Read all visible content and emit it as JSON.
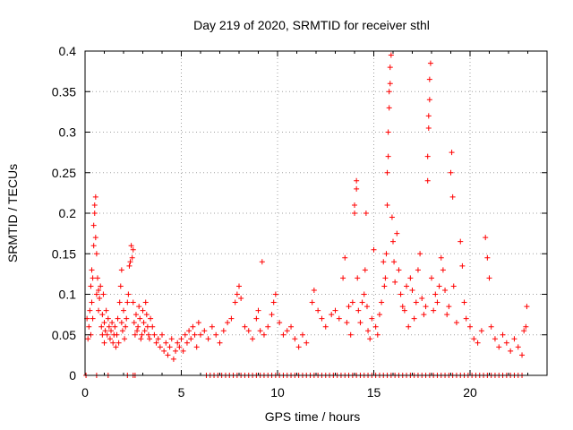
{
  "chart_data": {
    "type": "scatter",
    "title": "Day 219 of 2020, SRMTID for receiver sthl",
    "xlabel": "GPS time / hours",
    "ylabel": "SRMTID / TECUs",
    "xlim": [
      0,
      24
    ],
    "ylim": [
      0,
      0.4
    ],
    "xticks": [
      0,
      5,
      10,
      15,
      20
    ],
    "yticks": [
      0,
      0.05,
      0.1,
      0.15,
      0.2,
      0.25,
      0.3,
      0.35,
      0.4
    ],
    "xtick_labels": [
      "0",
      "5",
      "10",
      "15",
      "20"
    ],
    "ytick_labels": [
      "0",
      "0.05",
      "0.1",
      "0.15",
      "0.2",
      "0.25",
      "0.3",
      "0.35",
      "0.4"
    ],
    "grid": true,
    "marker": "+",
    "color": "#ff0000",
    "series": [
      {
        "name": "sthl",
        "points": [
          [
            0.1,
            0.07
          ],
          [
            0.15,
            0.045
          ],
          [
            0.2,
            0.06
          ],
          [
            0.25,
            0.08
          ],
          [
            0.3,
            0.05
          ],
          [
            0.3,
            0.11
          ],
          [
            0.35,
            0.13
          ],
          [
            0.35,
            0.09
          ],
          [
            0.4,
            0.12
          ],
          [
            0.4,
            0.07
          ],
          [
            0.45,
            0.16
          ],
          [
            0.45,
            0.185
          ],
          [
            0.5,
            0.2
          ],
          [
            0.5,
            0.21
          ],
          [
            0.55,
            0.22
          ],
          [
            0.55,
            0.17
          ],
          [
            0.6,
            0.15
          ],
          [
            0.6,
            0.1
          ],
          [
            0.65,
            0.12
          ],
          [
            0.7,
            0.08
          ],
          [
            0.7,
            0.105
          ],
          [
            0.75,
            0.095
          ],
          [
            0.8,
            0.11
          ],
          [
            0.85,
            0.06
          ],
          [
            0.9,
            0.05
          ],
          [
            0.9,
            0.075
          ],
          [
            0.95,
            0.1
          ],
          [
            1.0,
            0.065
          ],
          [
            1.0,
            0.04
          ],
          [
            1.05,
            0.055
          ],
          [
            1.1,
            0.08
          ],
          [
            1.15,
            0.05
          ],
          [
            1.2,
            0.07
          ],
          [
            1.25,
            0.06
          ],
          [
            1.3,
            0.045
          ],
          [
            1.35,
            0.055
          ],
          [
            1.4,
            0.065
          ],
          [
            1.45,
            0.04
          ],
          [
            1.5,
            0.05
          ],
          [
            1.55,
            0.06
          ],
          [
            1.6,
            0.035
          ],
          [
            1.65,
            0.05
          ],
          [
            1.7,
            0.07
          ],
          [
            1.75,
            0.04
          ],
          [
            1.8,
            0.09
          ],
          [
            1.85,
            0.11
          ],
          [
            1.9,
            0.13
          ],
          [
            1.9,
            0.065
          ],
          [
            1.95,
            0.055
          ],
          [
            2.0,
            0.08
          ],
          [
            2.05,
            0.045
          ],
          [
            2.1,
            0.06
          ],
          [
            2.15,
            0.07
          ],
          [
            2.2,
            0.09
          ],
          [
            2.25,
            0.1
          ],
          [
            2.3,
            0.135
          ],
          [
            2.35,
            0.14
          ],
          [
            2.4,
            0.16
          ],
          [
            2.45,
            0.145
          ],
          [
            2.5,
            0.155
          ],
          [
            2.5,
            0.09
          ],
          [
            2.55,
            0.065
          ],
          [
            2.6,
            0.05
          ],
          [
            2.65,
            0.075
          ],
          [
            2.7,
            0.055
          ],
          [
            2.75,
            0.06
          ],
          [
            2.8,
            0.085
          ],
          [
            2.85,
            0.07
          ],
          [
            2.9,
            0.045
          ],
          [
            2.95,
            0.05
          ],
          [
            3.0,
            0.08
          ],
          [
            3.05,
            0.065
          ],
          [
            3.1,
            0.055
          ],
          [
            3.15,
            0.09
          ],
          [
            3.2,
            0.075
          ],
          [
            3.25,
            0.06
          ],
          [
            3.3,
            0.05
          ],
          [
            3.35,
            0.045
          ],
          [
            3.4,
            0.07
          ],
          [
            3.5,
            0.06
          ],
          [
            3.6,
            0.05
          ],
          [
            3.7,
            0.04
          ],
          [
            3.8,
            0.045
          ],
          [
            3.9,
            0.035
          ],
          [
            4.0,
            0.05
          ],
          [
            4.1,
            0.03
          ],
          [
            4.2,
            0.04
          ],
          [
            4.3,
            0.025
          ],
          [
            4.4,
            0.035
          ],
          [
            4.5,
            0.045
          ],
          [
            4.6,
            0.02
          ],
          [
            4.7,
            0.03
          ],
          [
            4.8,
            0.04
          ],
          [
            4.9,
            0.035
          ],
          [
            5.0,
            0.045
          ],
          [
            5.1,
            0.03
          ],
          [
            5.2,
            0.05
          ],
          [
            5.3,
            0.04
          ],
          [
            5.4,
            0.055
          ],
          [
            5.5,
            0.045
          ],
          [
            5.6,
            0.06
          ],
          [
            5.7,
            0.05
          ],
          [
            5.8,
            0.035
          ],
          [
            5.9,
            0.065
          ],
          [
            6.0,
            0.05
          ],
          [
            6.2,
            0.055
          ],
          [
            6.4,
            0.045
          ],
          [
            6.6,
            0.06
          ],
          [
            6.8,
            0.05
          ],
          [
            7.0,
            0.04
          ],
          [
            7.2,
            0.055
          ],
          [
            7.4,
            0.065
          ],
          [
            7.6,
            0.07
          ],
          [
            7.8,
            0.09
          ],
          [
            7.9,
            0.1
          ],
          [
            8.0,
            0.11
          ],
          [
            8.1,
            0.095
          ],
          [
            8.3,
            0.06
          ],
          [
            8.5,
            0.055
          ],
          [
            8.7,
            0.045
          ],
          [
            8.9,
            0.07
          ],
          [
            9.0,
            0.08
          ],
          [
            9.1,
            0.055
          ],
          [
            9.2,
            0.14
          ],
          [
            9.3,
            0.05
          ],
          [
            9.5,
            0.06
          ],
          [
            9.7,
            0.075
          ],
          [
            9.8,
            0.09
          ],
          [
            9.9,
            0.1
          ],
          [
            10.1,
            0.065
          ],
          [
            10.3,
            0.05
          ],
          [
            10.5,
            0.055
          ],
          [
            10.7,
            0.06
          ],
          [
            10.9,
            0.045
          ],
          [
            11.1,
            0.035
          ],
          [
            11.3,
            0.05
          ],
          [
            11.5,
            0.04
          ],
          [
            11.8,
            0.09
          ],
          [
            11.9,
            0.105
          ],
          [
            12.1,
            0.08
          ],
          [
            12.3,
            0.07
          ],
          [
            12.5,
            0.06
          ],
          [
            12.8,
            0.075
          ],
          [
            13.0,
            0.08
          ],
          [
            13.2,
            0.07
          ],
          [
            13.4,
            0.12
          ],
          [
            13.5,
            0.145
          ],
          [
            13.6,
            0.065
          ],
          [
            13.7,
            0.085
          ],
          [
            13.8,
            0.05
          ],
          [
            13.9,
            0.09
          ],
          [
            14.0,
            0.2
          ],
          [
            14.0,
            0.21
          ],
          [
            14.1,
            0.23
          ],
          [
            14.1,
            0.24
          ],
          [
            14.15,
            0.12
          ],
          [
            14.2,
            0.08
          ],
          [
            14.3,
            0.065
          ],
          [
            14.4,
            0.09
          ],
          [
            14.5,
            0.1
          ],
          [
            14.55,
            0.13
          ],
          [
            14.6,
            0.2
          ],
          [
            14.65,
            0.085
          ],
          [
            14.7,
            0.055
          ],
          [
            14.8,
            0.045
          ],
          [
            14.9,
            0.07
          ],
          [
            15.0,
            0.155
          ],
          [
            15.1,
            0.06
          ],
          [
            15.2,
            0.05
          ],
          [
            15.3,
            0.075
          ],
          [
            15.4,
            0.09
          ],
          [
            15.5,
            0.14
          ],
          [
            15.55,
            0.11
          ],
          [
            15.6,
            0.12
          ],
          [
            15.65,
            0.15
          ],
          [
            15.7,
            0.21
          ],
          [
            15.7,
            0.25
          ],
          [
            15.75,
            0.27
          ],
          [
            15.75,
            0.3
          ],
          [
            15.8,
            0.33
          ],
          [
            15.8,
            0.35
          ],
          [
            15.85,
            0.36
          ],
          [
            15.85,
            0.38
          ],
          [
            15.9,
            0.395
          ],
          [
            15.95,
            0.195
          ],
          [
            16.0,
            0.165
          ],
          [
            16.05,
            0.14
          ],
          [
            16.1,
            0.115
          ],
          [
            16.2,
            0.175
          ],
          [
            16.3,
            0.13
          ],
          [
            16.4,
            0.1
          ],
          [
            16.5,
            0.085
          ],
          [
            16.6,
            0.08
          ],
          [
            16.7,
            0.11
          ],
          [
            16.8,
            0.06
          ],
          [
            16.9,
            0.12
          ],
          [
            17.0,
            0.105
          ],
          [
            17.1,
            0.07
          ],
          [
            17.2,
            0.09
          ],
          [
            17.3,
            0.13
          ],
          [
            17.4,
            0.15
          ],
          [
            17.5,
            0.095
          ],
          [
            17.6,
            0.075
          ],
          [
            17.7,
            0.085
          ],
          [
            17.8,
            0.24
          ],
          [
            17.8,
            0.27
          ],
          [
            17.85,
            0.305
          ],
          [
            17.85,
            0.32
          ],
          [
            17.9,
            0.34
          ],
          [
            17.9,
            0.365
          ],
          [
            17.95,
            0.385
          ],
          [
            18.0,
            0.12
          ],
          [
            18.1,
            0.08
          ],
          [
            18.2,
            0.1
          ],
          [
            18.3,
            0.09
          ],
          [
            18.4,
            0.11
          ],
          [
            18.5,
            0.145
          ],
          [
            18.6,
            0.13
          ],
          [
            18.7,
            0.105
          ],
          [
            18.8,
            0.075
          ],
          [
            18.9,
            0.085
          ],
          [
            19.0,
            0.25
          ],
          [
            19.05,
            0.275
          ],
          [
            19.1,
            0.22
          ],
          [
            19.15,
            0.11
          ],
          [
            19.3,
            0.065
          ],
          [
            19.5,
            0.165
          ],
          [
            19.6,
            0.135
          ],
          [
            19.7,
            0.09
          ],
          [
            19.8,
            0.07
          ],
          [
            20.0,
            0.06
          ],
          [
            20.2,
            0.045
          ],
          [
            20.4,
            0.04
          ],
          [
            20.6,
            0.055
          ],
          [
            20.8,
            0.17
          ],
          [
            20.9,
            0.145
          ],
          [
            21.0,
            0.12
          ],
          [
            21.1,
            0.06
          ],
          [
            21.3,
            0.045
          ],
          [
            21.5,
            0.035
          ],
          [
            21.7,
            0.05
          ],
          [
            21.9,
            0.04
          ],
          [
            22.1,
            0.03
          ],
          [
            22.3,
            0.045
          ],
          [
            22.5,
            0.035
          ],
          [
            22.7,
            0.025
          ],
          [
            22.8,
            0.055
          ],
          [
            22.9,
            0.06
          ],
          [
            22.95,
            0.085
          ]
        ],
        "zero_times": [
          0.05,
          0.6,
          1.2,
          2.2,
          2.5,
          2.6,
          6.3,
          6.5,
          6.7,
          6.9,
          7.1,
          7.3,
          7.5,
          7.7,
          7.9,
          8.1,
          8.3,
          8.5,
          8.7,
          8.9,
          9.1,
          9.3,
          9.5,
          9.7,
          9.9,
          10.1,
          10.3,
          10.5,
          10.7,
          10.9,
          11.1,
          11.3,
          11.5,
          11.7,
          11.9,
          12.1,
          12.3,
          12.5,
          12.7,
          12.9,
          13.1,
          13.3,
          13.5,
          13.7,
          13.9,
          14.1,
          14.3,
          14.5,
          14.7,
          14.9,
          15.1,
          15.3,
          15.5,
          15.7,
          15.9,
          16.1,
          16.3,
          16.5,
          16.7,
          16.9,
          17.1,
          17.3,
          17.5,
          17.7,
          17.9,
          18.1,
          18.3,
          18.5,
          18.7,
          18.9,
          19.1,
          19.3,
          19.5,
          19.7,
          19.9,
          20.1,
          20.3,
          20.5,
          20.7,
          20.9,
          21.1,
          21.3,
          21.5,
          21.7,
          21.9,
          22.1,
          22.3,
          22.5,
          22.7
        ]
      }
    ]
  }
}
